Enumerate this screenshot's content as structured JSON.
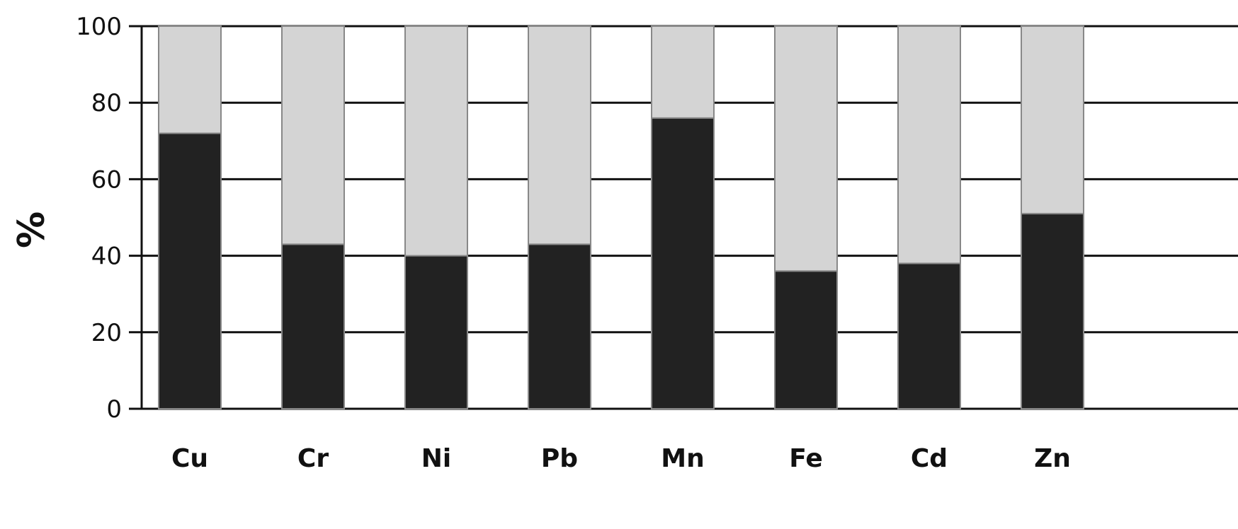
{
  "chart_data": {
    "type": "bar",
    "stacked": true,
    "normalized_percent": true,
    "categories": [
      "Cu",
      "Cr",
      "Ni",
      "Pb",
      "Mn",
      "Fe",
      "Cd",
      "Zn"
    ],
    "series": [
      {
        "values": [
          72,
          43,
          40,
          43,
          76,
          36,
          38,
          51
        ],
        "color": "#222222"
      },
      {
        "values": [
          28,
          57,
          60,
          57,
          24,
          64,
          62,
          49
        ],
        "color": "#d4d4d4"
      }
    ],
    "title": "",
    "xlabel": "",
    "ylabel": "%",
    "ylim": [
      0,
      100
    ],
    "yticks": [
      0,
      20,
      40,
      60,
      80,
      100
    ],
    "grid": true,
    "legend": "none"
  }
}
